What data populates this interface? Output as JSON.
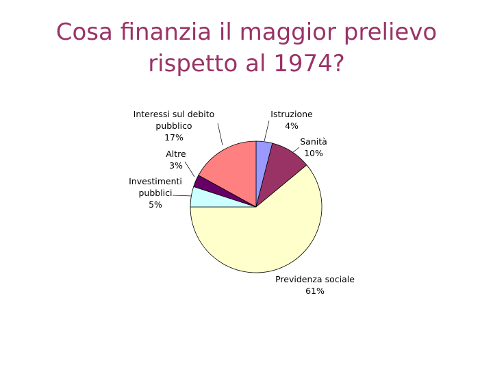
{
  "slide": {
    "title_line1": "Cosa finanzia il maggior prelievo",
    "title_line2": "rispetto al 1974?"
  },
  "chart_data": {
    "type": "pie",
    "title": "",
    "slices": [
      {
        "name": "Istruzione",
        "value": 4,
        "label": "4%",
        "color": "#9999ff"
      },
      {
        "name": "Sanità",
        "value": 10,
        "label": "10%",
        "color": "#993366"
      },
      {
        "name": "Previdenza sociale",
        "value": 61,
        "label": "61%",
        "color": "#ffffcc"
      },
      {
        "name": "Investimenti pubblici",
        "value": 5,
        "label": "5%",
        "color": "#ccffff"
      },
      {
        "name": "Altre",
        "value": 3,
        "label": "3%",
        "color": "#660066"
      },
      {
        "name": "Interessi sul debito pubblico",
        "value": 17,
        "label": "17%",
        "color": "#ff8080"
      }
    ],
    "label_lines": [
      [
        "Istruzione",
        "4%"
      ],
      [
        "Sanità",
        "10%"
      ],
      [
        "Previdenza sociale",
        "61%"
      ],
      [
        "Investimenti",
        "pubblici",
        "5%"
      ],
      [
        "Altre",
        "3%"
      ],
      [
        "Interessi  sul debito",
        "pubblico",
        "17%"
      ]
    ]
  }
}
